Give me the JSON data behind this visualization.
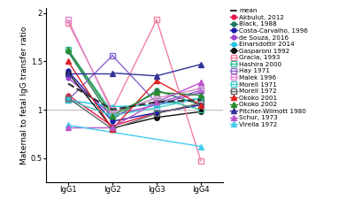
{
  "x_labels": [
    "IgG1",
    "IgG2",
    "IgG3",
    "IgG4"
  ],
  "series": [
    {
      "label": "mean",
      "values": [
        1.27,
        1.0,
        1.08,
        1.1
      ],
      "color": "#333333",
      "linestyle": "--",
      "marker": null,
      "linewidth": 1.5,
      "markersize": 0
    },
    {
      "label": "Akbulut, 2012",
      "values": [
        1.15,
        0.83,
        0.97,
        1.05
      ],
      "color": "#e8174a",
      "linestyle": "-",
      "marker": "o",
      "linewidth": 1.0,
      "markersize": 3.5
    },
    {
      "label": "Black, 1988",
      "values": [
        1.6,
        0.9,
        1.2,
        1.05
      ],
      "color": "#1a7a5e",
      "linestyle": "-",
      "marker": "o",
      "linewidth": 1.0,
      "markersize": 3.5
    },
    {
      "label": "Costa-Carvalho, 1996",
      "values": [
        1.4,
        0.88,
        0.97,
        1.05
      ],
      "color": "#1a1aaa",
      "linestyle": "-",
      "marker": "o",
      "linewidth": 1.0,
      "markersize": 3.5
    },
    {
      "label": "de Souza, 2016",
      "values": [
        1.33,
        0.94,
        1.05,
        1.18
      ],
      "color": "#a044cc",
      "linestyle": "-",
      "marker": "o",
      "linewidth": 1.0,
      "markersize": 3.5
    },
    {
      "label": "Einarsdottir 2014",
      "values": [
        1.1,
        1.03,
        1.05,
        1.12
      ],
      "color": "#22c4e0",
      "linestyle": "-",
      "marker": "o",
      "linewidth": 1.0,
      "markersize": 3.5
    },
    {
      "label": "Gasparoni 1992",
      "values": [
        1.38,
        0.81,
        0.92,
        0.98
      ],
      "color": "#111111",
      "linestyle": "-",
      "marker": "o",
      "linewidth": 1.0,
      "markersize": 4,
      "fillstyle": "full"
    },
    {
      "label": "Gracia, 1993",
      "values": [
        1.9,
        1.0,
        1.93,
        0.47
      ],
      "color": "#f080a0",
      "linestyle": "-",
      "marker": "s",
      "linewidth": 1.0,
      "markersize": 4,
      "fillstyle": "none"
    },
    {
      "label": "Hashira 2000",
      "values": [
        1.62,
        0.97,
        1.12,
        1.0
      ],
      "color": "#3dbfa0",
      "linestyle": "-",
      "marker": "s",
      "linewidth": 1.0,
      "markersize": 4,
      "fillstyle": "none"
    },
    {
      "label": "Hay 1971",
      "values": [
        1.1,
        1.56,
        1.07,
        1.2
      ],
      "color": "#8866cc",
      "linestyle": "-",
      "marker": "s",
      "linewidth": 1.0,
      "markersize": 4,
      "fillstyle": "none"
    },
    {
      "label": "Malek 1996",
      "values": [
        1.93,
        0.97,
        1.12,
        1.22
      ],
      "color": "#dd88cc",
      "linestyle": "-",
      "marker": "s",
      "linewidth": 1.0,
      "markersize": 4,
      "fillstyle": "none"
    },
    {
      "label": "Morell 1971",
      "values": [
        1.1,
        0.94,
        1.02,
        1.12
      ],
      "color": "#44cccc",
      "linestyle": "-",
      "marker": "s",
      "linewidth": 1.0,
      "markersize": 4,
      "fillstyle": "none"
    },
    {
      "label": "Morell 1972",
      "values": [
        1.12,
        0.8,
        0.96,
        1.07
      ],
      "color": "#666666",
      "linestyle": "-",
      "marker": "s",
      "linewidth": 1.0,
      "markersize": 4,
      "fillstyle": "none"
    },
    {
      "label": "Okoko 2001",
      "values": [
        1.5,
        0.8,
        1.3,
        1.05
      ],
      "color": "#dd2222",
      "linestyle": "-",
      "marker": "^",
      "linewidth": 1.0,
      "markersize": 4,
      "fillstyle": "full"
    },
    {
      "label": "Okoko 2002",
      "values": [
        1.62,
        0.94,
        1.18,
        1.15
      ],
      "color": "#2a8a2a",
      "linestyle": "-",
      "marker": "^",
      "linewidth": 1.0,
      "markersize": 4,
      "fillstyle": "full"
    },
    {
      "label": "Pitcher-Wilmott 1980",
      "values": [
        1.38,
        1.38,
        1.35,
        1.47
      ],
      "color": "#333399",
      "linestyle": "-",
      "marker": "^",
      "linewidth": 1.0,
      "markersize": 4,
      "fillstyle": "full"
    },
    {
      "label": "Schur, 1973",
      "values": [
        0.82,
        0.82,
        1.08,
        1.28
      ],
      "color": "#bb55cc",
      "linestyle": "-",
      "marker": "^",
      "linewidth": 1.0,
      "markersize": 4,
      "fillstyle": "full"
    },
    {
      "label": "Virella 1972",
      "values": [
        0.84,
        null,
        null,
        0.62
      ],
      "color": "#44ccee",
      "linestyle": "-",
      "marker": "^",
      "linewidth": 1.0,
      "markersize": 4,
      "fillstyle": "full"
    }
  ],
  "ylabel": "Maternal to fetal IgG transfer ratio",
  "ylim": [
    0.25,
    2.05
  ],
  "yticks": [
    0.5,
    1.0,
    1.5,
    2.0
  ],
  "hline_y": 1.0,
  "hline_color": "#c0c0c0",
  "background_color": "#ffffff",
  "legend_fontsize": 5.2,
  "axis_label_fontsize": 6.5,
  "tick_fontsize": 6.0
}
